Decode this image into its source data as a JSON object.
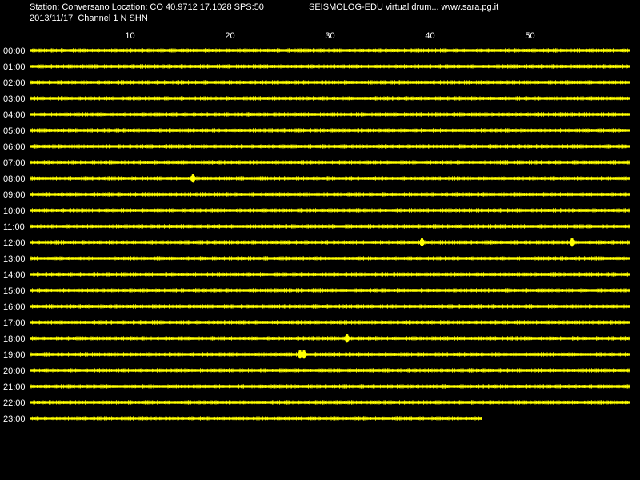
{
  "header": {
    "station_line": "Station: Conversano Location: CO 40.9712 17.1028 SPS:50",
    "date_line": "2013/11/17  Channel 1 N SHN",
    "title_line": "SEISMOLOG-EDU virtual drum... www.sara.pg.it"
  },
  "chart_data": {
    "type": "line",
    "x_ticks": [
      "10",
      "20",
      "30",
      "40",
      "50"
    ],
    "xlim": [
      0,
      60
    ],
    "grid": true,
    "trace_color": "#ffff00",
    "rows": [
      {
        "label": "00:00",
        "end_minute": 60
      },
      {
        "label": "01:00",
        "end_minute": 60
      },
      {
        "label": "02:00",
        "end_minute": 60
      },
      {
        "label": "03:00",
        "end_minute": 60
      },
      {
        "label": "04:00",
        "end_minute": 60
      },
      {
        "label": "05:00",
        "end_minute": 60
      },
      {
        "label": "06:00",
        "end_minute": 60
      },
      {
        "label": "07:00",
        "end_minute": 60
      },
      {
        "label": "08:00",
        "end_minute": 60,
        "events": [
          16.3
        ]
      },
      {
        "label": "09:00",
        "end_minute": 60
      },
      {
        "label": "10:00",
        "end_minute": 60
      },
      {
        "label": "11:00",
        "end_minute": 60
      },
      {
        "label": "12:00",
        "end_minute": 60,
        "events": [
          39.2,
          54.2
        ]
      },
      {
        "label": "13:00",
        "end_minute": 60
      },
      {
        "label": "14:00",
        "end_minute": 60
      },
      {
        "label": "15:00",
        "end_minute": 60
      },
      {
        "label": "16:00",
        "end_minute": 60
      },
      {
        "label": "17:00",
        "end_minute": 60
      },
      {
        "label": "18:00",
        "end_minute": 60,
        "events": [
          31.7
        ]
      },
      {
        "label": "19:00",
        "end_minute": 60,
        "events": [
          27.0,
          27.4
        ]
      },
      {
        "label": "20:00",
        "end_minute": 60
      },
      {
        "label": "21:00",
        "end_minute": 60
      },
      {
        "label": "22:00",
        "end_minute": 60
      },
      {
        "label": "23:00",
        "end_minute": 45.2
      }
    ]
  }
}
